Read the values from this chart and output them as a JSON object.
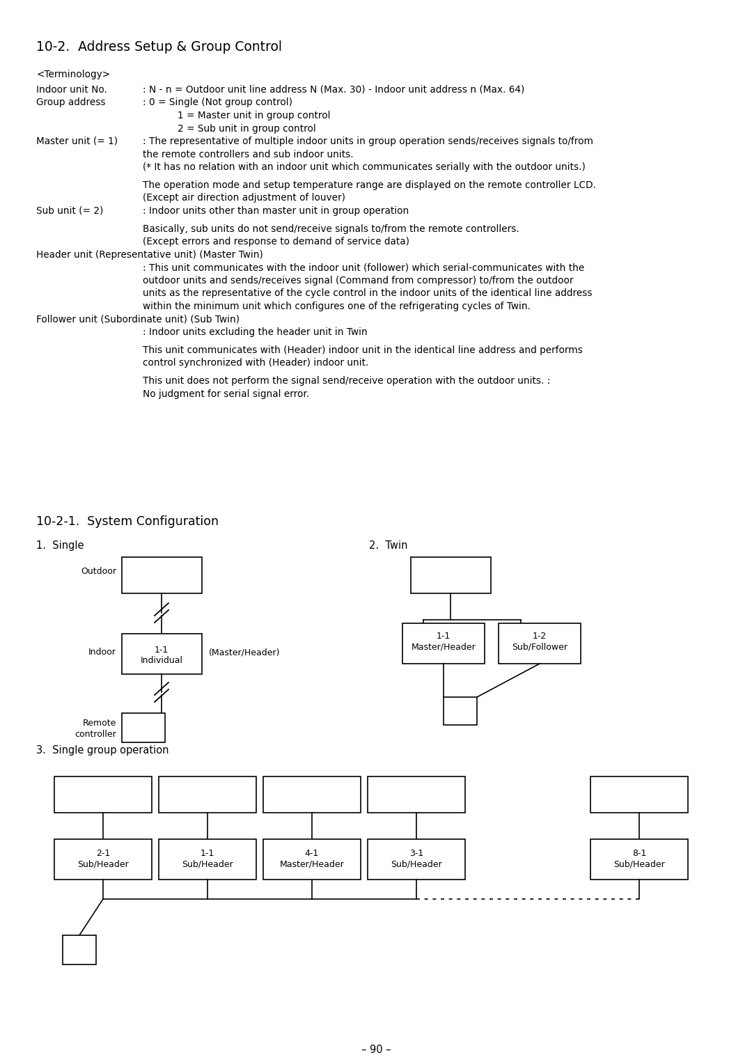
{
  "title": "10-2.  Address Setup & Group Control",
  "section_title": "10-2-1.  System Configuration",
  "terminology_header": "<Terminology>",
  "page_number": "– 90 –",
  "bg_color": "#ffffff",
  "text_color": "#000000"
}
